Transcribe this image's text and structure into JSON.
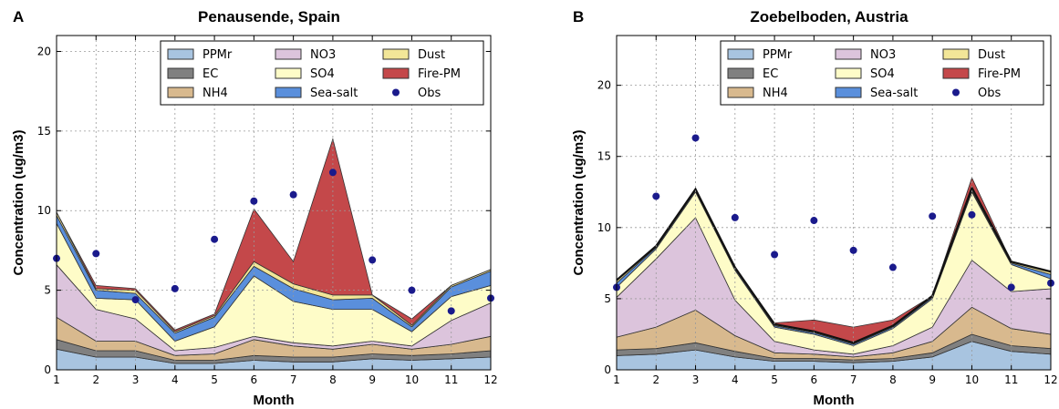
{
  "chart_data": [
    {
      "type": "area",
      "panel": "A",
      "title": "Penausende, Spain",
      "xlabel": "Month",
      "ylabel": "Concentration (ug/m3)",
      "x": [
        1,
        2,
        3,
        4,
        5,
        6,
        7,
        8,
        9,
        10,
        11,
        12
      ],
      "xlim": [
        1,
        12
      ],
      "ylim": [
        0,
        21
      ],
      "yticks": [
        0,
        5,
        10,
        15,
        20
      ],
      "grid": true,
      "legend_position": "top-right",
      "stacked": true,
      "series": [
        {
          "name": "PPMr",
          "color": "#a8c4e0",
          "values": [
            1.3,
            0.8,
            0.8,
            0.4,
            0.4,
            0.6,
            0.5,
            0.5,
            0.7,
            0.6,
            0.7,
            0.8
          ]
        },
        {
          "name": "EC",
          "color": "#808080",
          "values": [
            0.6,
            0.4,
            0.4,
            0.2,
            0.2,
            0.3,
            0.3,
            0.3,
            0.3,
            0.3,
            0.3,
            0.4
          ]
        },
        {
          "name": "NH4",
          "color": "#d8b98e",
          "values": [
            1.4,
            0.6,
            0.6,
            0.3,
            0.4,
            1.0,
            0.7,
            0.5,
            0.6,
            0.4,
            0.6,
            0.9
          ]
        },
        {
          "name": "NO3",
          "color": "#dcc4dc",
          "values": [
            3.3,
            2.0,
            1.4,
            0.3,
            0.4,
            0.2,
            0.2,
            0.2,
            0.2,
            0.2,
            1.5,
            2.1
          ]
        },
        {
          "name": "SO4",
          "color": "#fefcc8",
          "values": [
            2.6,
            0.7,
            1.2,
            0.6,
            1.3,
            3.8,
            2.6,
            2.3,
            2.0,
            0.9,
            1.5,
            1.1
          ]
        },
        {
          "name": "Sea-salt",
          "color": "#5a8fdc",
          "values": [
            0.5,
            0.5,
            0.4,
            0.5,
            0.6,
            0.6,
            0.8,
            0.6,
            0.7,
            0.3,
            0.6,
            0.9
          ]
        },
        {
          "name": "Dust",
          "color": "#f2e698",
          "values": [
            0.2,
            0.1,
            0.2,
            0.1,
            0.1,
            0.3,
            0.3,
            0.3,
            0.2,
            0.1,
            0.1,
            0.1
          ]
        },
        {
          "name": "Fire-PM",
          "color": "#c4484a",
          "values": [
            0,
            0.2,
            0.1,
            0.1,
            0.1,
            3.3,
            1.4,
            9.8,
            0,
            0.4,
            0,
            0
          ]
        }
      ],
      "obs": {
        "name": "Obs",
        "color": "#1a1a8c",
        "values": [
          7.0,
          7.3,
          4.4,
          5.1,
          8.2,
          10.6,
          11.0,
          12.4,
          6.9,
          5.0,
          3.7,
          4.5
        ]
      }
    },
    {
      "type": "area",
      "panel": "B",
      "title": "Zoebelboden, Austria",
      "xlabel": "Month",
      "ylabel": "Concentration (ug/m3)",
      "x": [
        1,
        2,
        3,
        4,
        5,
        6,
        7,
        8,
        9,
        10,
        11,
        12
      ],
      "xlim": [
        1,
        12
      ],
      "ylim": [
        0,
        23.5
      ],
      "yticks": [
        0,
        5,
        10,
        15,
        20
      ],
      "grid": true,
      "legend_position": "top-right",
      "stacked": true,
      "series": [
        {
          "name": "PPMr",
          "color": "#a8c4e0",
          "values": [
            1.0,
            1.1,
            1.4,
            0.9,
            0.6,
            0.6,
            0.5,
            0.6,
            0.9,
            2.0,
            1.3,
            1.1
          ]
        },
        {
          "name": "EC",
          "color": "#808080",
          "values": [
            0.4,
            0.4,
            0.5,
            0.4,
            0.2,
            0.2,
            0.2,
            0.2,
            0.3,
            0.5,
            0.4,
            0.4
          ]
        },
        {
          "name": "NH4",
          "color": "#d8b98e",
          "values": [
            0.9,
            1.5,
            2.3,
            1.1,
            0.4,
            0.3,
            0.2,
            0.4,
            0.8,
            1.9,
            1.2,
            1.0
          ]
        },
        {
          "name": "NO3",
          "color": "#dcc4dc",
          "values": [
            2.8,
            4.8,
            6.5,
            2.5,
            0.8,
            0.3,
            0.2,
            0.5,
            1.0,
            3.3,
            2.6,
            3.2
          ]
        },
        {
          "name": "SO4",
          "color": "#fefcc8",
          "values": [
            0.7,
            0.7,
            1.8,
            2.1,
            1.0,
            1.1,
            0.6,
            1.2,
            2.0,
            4.8,
            1.9,
            0.7
          ]
        },
        {
          "name": "Sea-salt",
          "color": "#5a8fdc",
          "values": [
            0.3,
            0.1,
            0.1,
            0.1,
            0.1,
            0.1,
            0.1,
            0.1,
            0.1,
            0.1,
            0.1,
            0.3
          ]
        },
        {
          "name": "Dust",
          "color": "#f2e698",
          "values": [
            0.2,
            0.1,
            0.1,
            0.1,
            0.1,
            0.1,
            0.1,
            0.1,
            0.1,
            0.2,
            0.1,
            0.2
          ]
        },
        {
          "name": "Fire-PM",
          "color": "#c4484a",
          "values": [
            0,
            0,
            0,
            0,
            0.1,
            0.8,
            1.1,
            0.4,
            0,
            0.7,
            0,
            0
          ]
        }
      ],
      "obs": {
        "name": "Obs",
        "color": "#1a1a8c",
        "values": [
          5.8,
          12.2,
          16.3,
          10.7,
          8.1,
          10.5,
          8.4,
          7.2,
          10.8,
          10.9,
          5.8,
          6.1
        ]
      }
    }
  ]
}
